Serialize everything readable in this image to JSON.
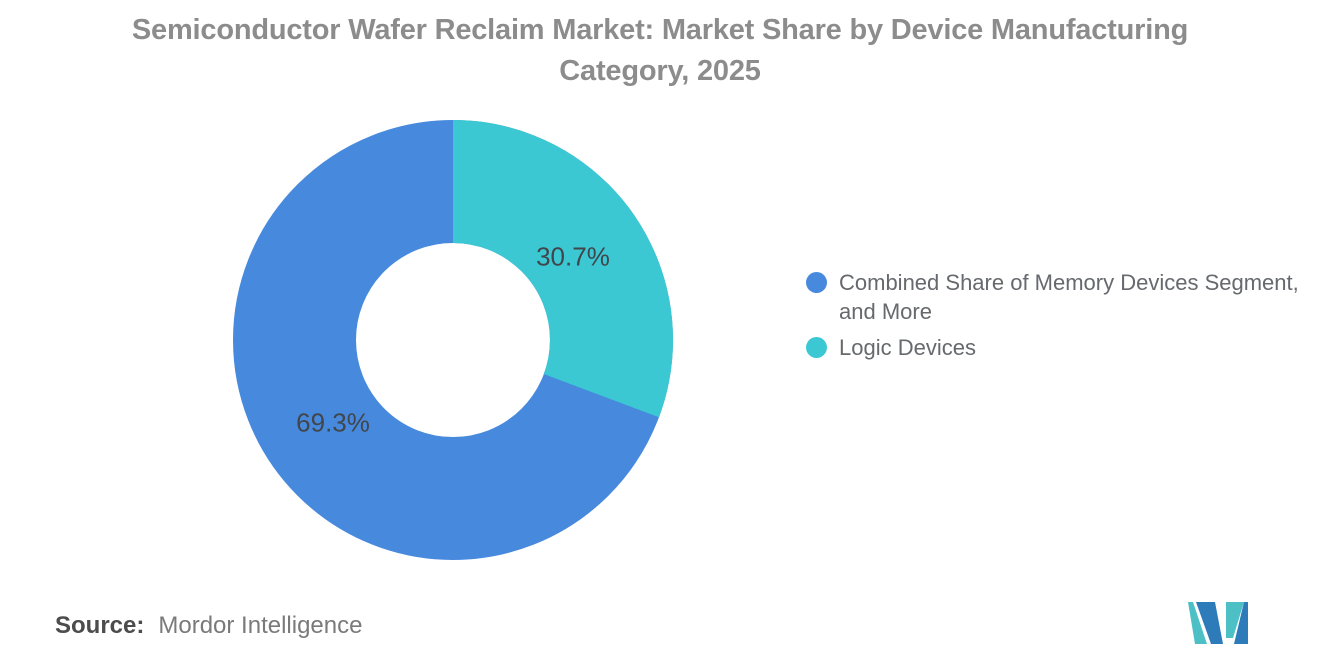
{
  "title": "Semiconductor Wafer Reclaim Market: Market Share by Device Manufacturing Category, 2025",
  "chart_data": {
    "type": "pie",
    "subtype": "donut",
    "title": "Semiconductor Wafer Reclaim Market: Market Share by Device Manufacturing Category, 2025",
    "segments": [
      {
        "label": "Combined Share of Memory Devices Segment, and More",
        "value": 69.3,
        "display": "69.3%",
        "color": "#478ADD"
      },
      {
        "label": "Logic Devices",
        "value": 30.7,
        "display": "30.7%",
        "color": "#3CC8D2"
      }
    ],
    "start_angle_deg": 0,
    "direction": "clockwise",
    "first_drawn_segment": "Logic Devices",
    "inner_radius_ratio": 0.44,
    "legend_position": "right",
    "data_labels_shown": true
  },
  "source": {
    "label": "Source:",
    "value": "Mordor Intelligence"
  },
  "logo": {
    "name": "mordor-intelligence-logo",
    "teal": "#4CC0C5",
    "blue": "#2D7CB9"
  },
  "text_colors": {
    "title": "#8c8c8c",
    "percent_label": "#41464d",
    "legend": "#66696d",
    "source_label": "#4c4c4c",
    "source_value": "#7a7a7a"
  }
}
